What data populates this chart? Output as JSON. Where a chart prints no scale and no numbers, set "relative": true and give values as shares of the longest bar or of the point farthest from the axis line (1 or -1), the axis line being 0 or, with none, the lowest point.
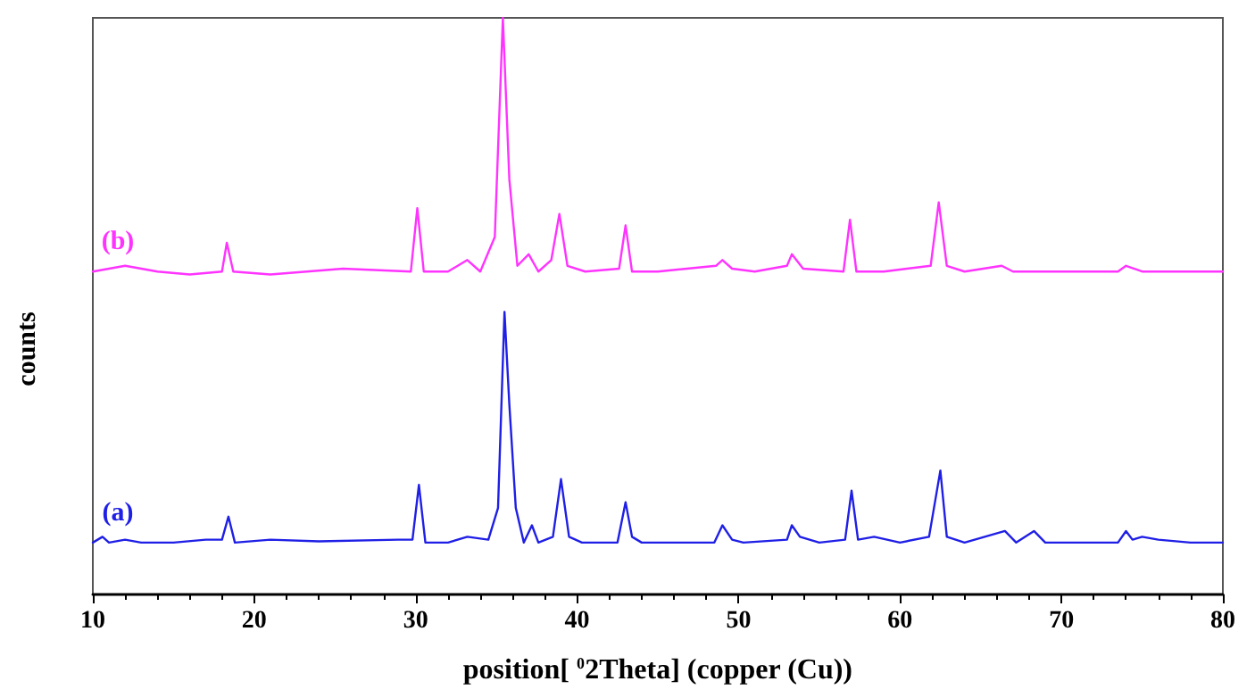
{
  "chart_data": {
    "type": "line",
    "xlabel": "position[ $^{0}$2Theta] (copper (Cu))",
    "ylabel": "counts",
    "relative": true,
    "xlim": [
      10,
      80
    ],
    "xticks": [
      10,
      20,
      30,
      40,
      50,
      60,
      70,
      80
    ],
    "marker": "none",
    "line_style": "solid",
    "series": [
      {
        "name": "(a)",
        "color": "#1f1fe6",
        "x": [
          10,
          10.6,
          11,
          12,
          13,
          15,
          17,
          18,
          18.4,
          18.8,
          21,
          24,
          28.9,
          29.8,
          30.2,
          30.6,
          32,
          33.2,
          34.5,
          35.1,
          35.5,
          35.8,
          36.2,
          36.7,
          37.2,
          37.6,
          38.5,
          39,
          39.5,
          40.3,
          42.5,
          43,
          43.4,
          44,
          48.5,
          49,
          49.6,
          50.3,
          53,
          53.3,
          53.8,
          55,
          56.6,
          57,
          57.4,
          58.4,
          60,
          61.8,
          62.5,
          62.9,
          64,
          66.5,
          67.2,
          68.3,
          69,
          73.5,
          74,
          74.4,
          75,
          76,
          78,
          80
        ],
        "values": [
          0.09,
          0.1,
          0.09,
          0.095,
          0.09,
          0.09,
          0.095,
          0.095,
          0.135,
          0.09,
          0.095,
          0.092,
          0.095,
          0.095,
          0.19,
          0.09,
          0.09,
          0.1,
          0.095,
          0.15,
          0.49,
          0.33,
          0.15,
          0.09,
          0.12,
          0.09,
          0.1,
          0.2,
          0.1,
          0.09,
          0.09,
          0.16,
          0.1,
          0.09,
          0.09,
          0.12,
          0.095,
          0.09,
          0.095,
          0.12,
          0.1,
          0.09,
          0.095,
          0.18,
          0.095,
          0.1,
          0.09,
          0.1,
          0.215,
          0.1,
          0.09,
          0.11,
          0.09,
          0.11,
          0.09,
          0.09,
          0.11,
          0.095,
          0.1,
          0.095,
          0.09,
          0.09
        ]
      },
      {
        "name": "(b)",
        "color": "#ff33ff",
        "x": [
          10,
          12,
          14,
          16,
          18,
          18.3,
          18.7,
          21,
          25.5,
          29.7,
          30.1,
          30.5,
          32,
          33.2,
          34,
          34.9,
          35.4,
          35.8,
          36.3,
          37,
          37.6,
          38.4,
          38.9,
          39.4,
          40.5,
          42.6,
          43,
          43.4,
          45,
          48.6,
          49,
          49.6,
          51,
          53,
          53.3,
          54,
          56.5,
          56.9,
          57.3,
          59,
          61.9,
          62.4,
          62.9,
          64,
          66.3,
          67,
          70,
          73.5,
          74,
          75,
          78,
          80
        ],
        "values": [
          0.56,
          0.57,
          0.56,
          0.555,
          0.56,
          0.61,
          0.56,
          0.555,
          0.565,
          0.56,
          0.67,
          0.56,
          0.56,
          0.58,
          0.56,
          0.62,
          1,
          0.72,
          0.57,
          0.59,
          0.56,
          0.58,
          0.66,
          0.57,
          0.56,
          0.565,
          0.64,
          0.56,
          0.56,
          0.57,
          0.58,
          0.565,
          0.56,
          0.57,
          0.59,
          0.565,
          0.56,
          0.65,
          0.56,
          0.56,
          0.57,
          0.68,
          0.57,
          0.56,
          0.57,
          0.56,
          0.56,
          0.56,
          0.57,
          0.56,
          0.56,
          0.56
        ]
      }
    ]
  }
}
